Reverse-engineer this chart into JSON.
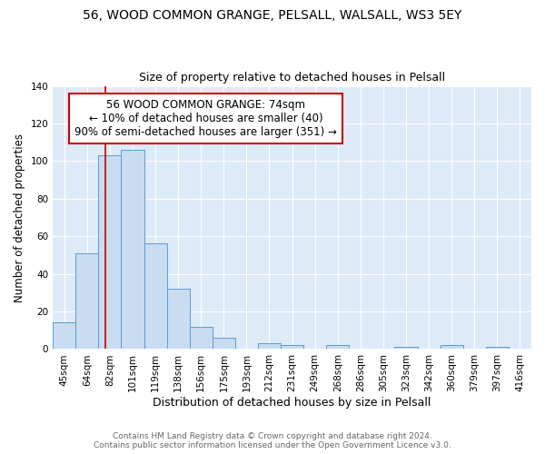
{
  "title": "56, WOOD COMMON GRANGE, PELSALL, WALSALL, WS3 5EY",
  "subtitle": "Size of property relative to detached houses in Pelsall",
  "xlabel": "Distribution of detached houses by size in Pelsall",
  "ylabel": "Number of detached properties",
  "bar_labels": [
    "45sqm",
    "64sqm",
    "82sqm",
    "101sqm",
    "119sqm",
    "138sqm",
    "156sqm",
    "175sqm",
    "193sqm",
    "212sqm",
    "231sqm",
    "249sqm",
    "268sqm",
    "286sqm",
    "305sqm",
    "323sqm",
    "342sqm",
    "360sqm",
    "379sqm",
    "397sqm",
    "416sqm"
  ],
  "bar_values": [
    14,
    51,
    103,
    106,
    56,
    32,
    12,
    6,
    0,
    3,
    2,
    0,
    2,
    0,
    0,
    1,
    0,
    2,
    0,
    1,
    0
  ],
  "bar_color": "#c9dcf0",
  "bar_edge_color": "#5b9bd5",
  "ylim": [
    0,
    140
  ],
  "yticks": [
    0,
    20,
    40,
    60,
    80,
    100,
    120,
    140
  ],
  "red_line_x": 1.82,
  "annotation_title": "56 WOOD COMMON GRANGE: 74sqm",
  "annotation_line1": "← 10% of detached houses are smaller (40)",
  "annotation_line2": "90% of semi-detached houses are larger (351) →",
  "annotation_box_facecolor": "#ffffff",
  "annotation_box_edgecolor": "#cc0000",
  "footer_line1": "Contains HM Land Registry data © Crown copyright and database right 2024.",
  "footer_line2": "Contains public sector information licensed under the Open Government Licence v3.0.",
  "plot_bg_color": "#ddeaf8",
  "fig_bg_color": "#ffffff",
  "grid_color": "#ffffff",
  "title_fontsize": 10,
  "subtitle_fontsize": 9,
  "xlabel_fontsize": 9,
  "ylabel_fontsize": 8.5,
  "tick_fontsize": 7.5,
  "footer_fontsize": 6.5,
  "annotation_fontsize": 8.5
}
